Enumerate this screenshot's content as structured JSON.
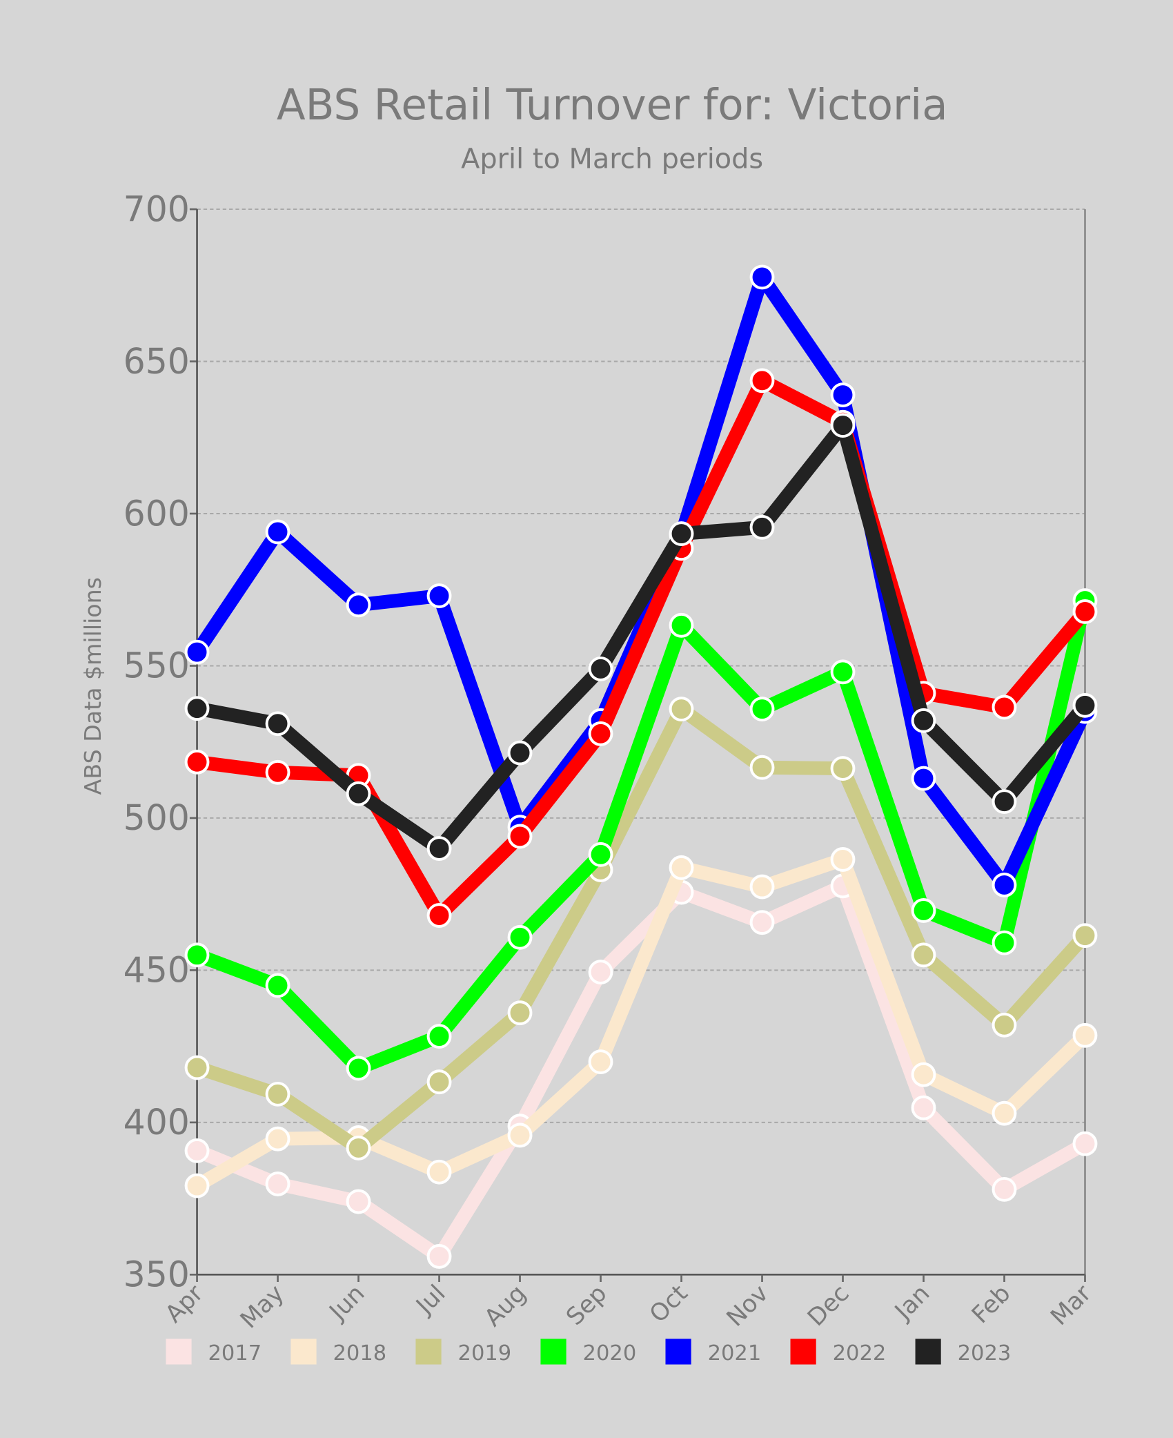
{
  "chart_data": {
    "type": "line",
    "title": "ABS Retail Turnover for: Victoria",
    "subtitle": "April to March periods",
    "xlabel": "",
    "ylabel": "ABS Data $millions",
    "ylim": [
      350,
      700
    ],
    "yticks": [
      350,
      400,
      450,
      500,
      550,
      600,
      650,
      700
    ],
    "grid": true,
    "legend_position": "bottom",
    "categories": [
      "Apr",
      "May",
      "Jun",
      "Jul",
      "Aug",
      "Sep",
      "Oct",
      "Nov",
      "Dec",
      "Jan",
      "Feb",
      "Mar"
    ],
    "series": [
      {
        "name": "2017",
        "color": "#fbe3e3",
        "values": [
          390.7,
          379.8,
          374,
          356,
          398.8,
          449.4,
          475.6,
          465.7,
          477.7,
          404.8,
          378,
          393
        ]
      },
      {
        "name": "2018",
        "color": "#fbe8cd",
        "values": [
          379.2,
          394.6,
          395,
          383.7,
          395.8,
          419.9,
          483.7,
          477.4,
          486.4,
          415.7,
          403,
          428.6
        ]
      },
      {
        "name": "2019",
        "color": "#cccb88",
        "values": [
          418,
          409.3,
          391.6,
          413.3,
          436,
          483,
          535.8,
          516.6,
          516.3,
          455,
          432,
          461.4
        ]
      },
      {
        "name": "2020",
        "color": "#00ff00",
        "values": [
          455,
          445,
          417.8,
          428.3,
          460.8,
          488,
          563.3,
          535.8,
          548,
          469.6,
          459,
          571.4
        ]
      },
      {
        "name": "2021",
        "color": "#0000ff",
        "values": [
          554.5,
          594,
          570,
          573,
          497,
          532,
          593,
          677.7,
          639,
          513,
          478,
          535
        ]
      },
      {
        "name": "2022",
        "color": "#ff0000",
        "values": [
          518.4,
          515,
          514,
          468,
          494,
          527.7,
          588.6,
          643.7,
          630,
          541,
          536.4,
          567.8
        ]
      },
      {
        "name": "2023",
        "color": "#222222",
        "values": [
          536,
          531,
          508,
          490,
          521.4,
          549,
          593.4,
          595.5,
          629,
          532,
          505.4,
          537
        ]
      }
    ]
  }
}
